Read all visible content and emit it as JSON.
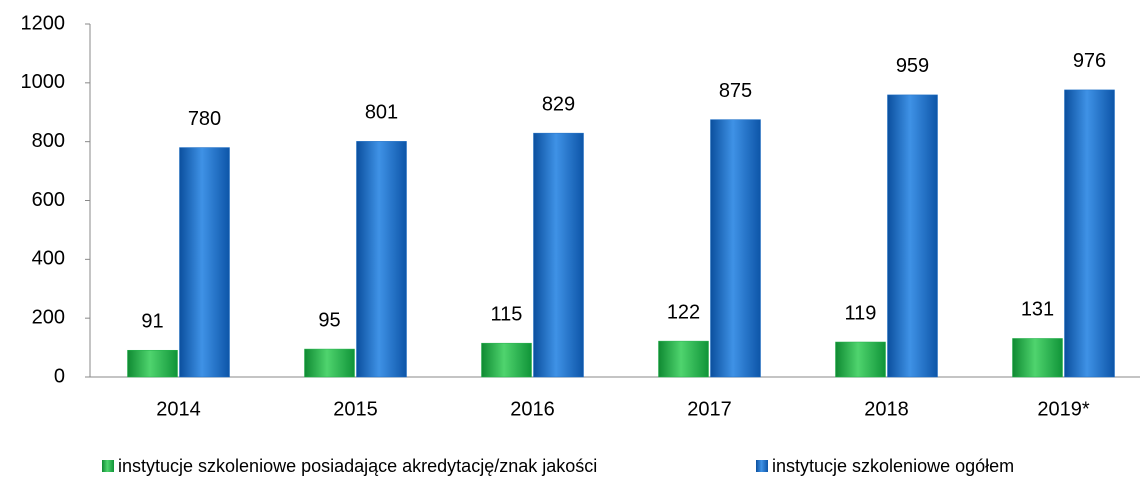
{
  "chart_data": {
    "type": "bar",
    "categories": [
      "2014",
      "2015",
      "2016",
      "2017",
      "2018",
      "2019*"
    ],
    "series": [
      {
        "name": "instytucje szkoleniowe posiadające akredytację/znak jakości",
        "color": "#22b04a",
        "values": [
          91,
          95,
          115,
          122,
          119,
          131
        ]
      },
      {
        "name": "instytucje szkoleniowe ogółem",
        "color": "#1a6cc4",
        "values": [
          780,
          801,
          829,
          875,
          959,
          976
        ]
      }
    ],
    "ylim": [
      0,
      1200
    ],
    "yticks": [
      0,
      200,
      400,
      600,
      800,
      1000,
      1200
    ],
    "grid": false,
    "legend": "bottom"
  }
}
